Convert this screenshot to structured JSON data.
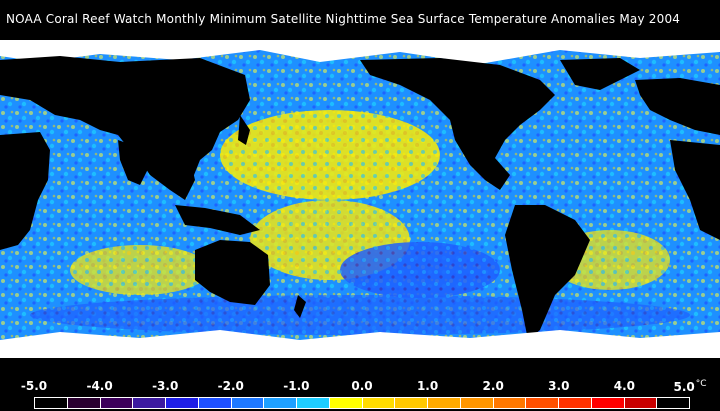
{
  "title": "NOAA Coral Reef Watch Monthly Minimum Satellite Nighttime Sea Surface Temperature Anomalies    May 2004",
  "legend": {
    "ticks": [
      "-5.0",
      "-4.0",
      "-3.0",
      "-2.0",
      "-1.0",
      "0.0",
      "1.0",
      "2.0",
      "3.0",
      "4.0",
      "5.0"
    ],
    "unit": "°C",
    "colors": [
      "#000000",
      "#2a0030",
      "#3c005a",
      "#3c1aa0",
      "#1e1ee6",
      "#1e50ff",
      "#1e78ff",
      "#1ea0ff",
      "#1ecdff",
      "#ffff00",
      "#ffdc00",
      "#ffc800",
      "#ffaa00",
      "#ff9600",
      "#ff7800",
      "#ff5000",
      "#ff3200",
      "#ff0000",
      "#c80000",
      "#000000"
    ]
  },
  "map": {
    "ocean_base": "#1e90ff",
    "land": "#000000",
    "ice": "#ffffff"
  }
}
